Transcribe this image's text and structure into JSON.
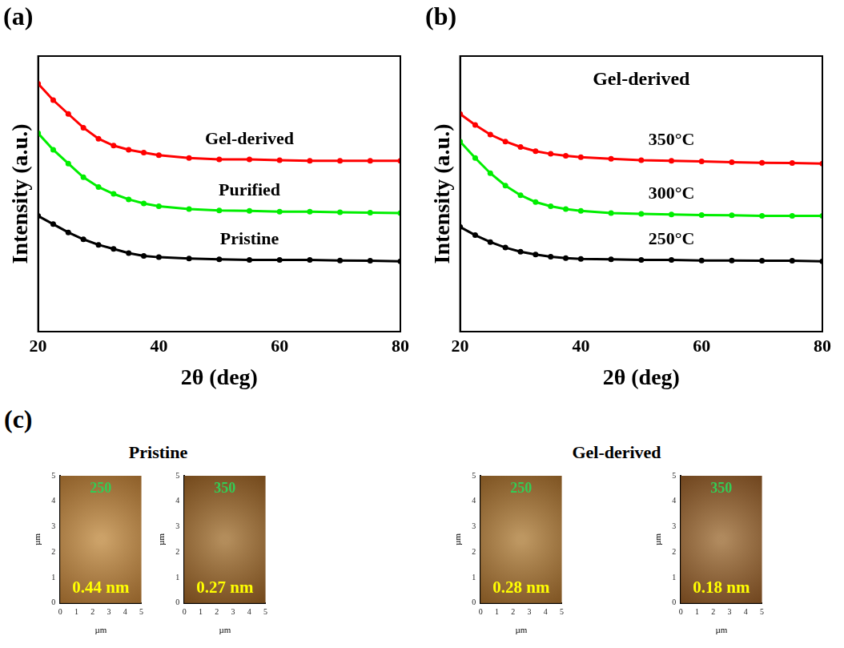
{
  "chart_data": [
    {
      "type": "line",
      "panel": "(a)",
      "x_label": "2θ (deg)",
      "y_label": "Intensity (a.u.)",
      "xlim": [
        20,
        80
      ],
      "xticks": [
        20,
        40,
        60,
        80
      ],
      "ylim": [
        0,
        10
      ],
      "yticks": [],
      "tick_labels": "x",
      "grid": false,
      "marker": "circle",
      "line_style": "solid",
      "x": [
        20,
        22.5,
        25,
        27.5,
        30,
        32.5,
        35,
        37.5,
        40,
        45,
        50,
        55,
        60,
        65,
        70,
        75,
        80
      ],
      "series": [
        {
          "name": "Gel-derived",
          "color": "#ff0000",
          "values": [
            9.0,
            8.4,
            7.9,
            7.4,
            7.0,
            6.75,
            6.6,
            6.5,
            6.4,
            6.3,
            6.25,
            6.25,
            6.22,
            6.2,
            6.2,
            6.2,
            6.2
          ]
        },
        {
          "name": "Purified",
          "color": "#00ee00",
          "values": [
            7.2,
            6.6,
            6.1,
            5.6,
            5.25,
            5.0,
            4.8,
            4.65,
            4.55,
            4.45,
            4.4,
            4.38,
            4.35,
            4.35,
            4.33,
            4.32,
            4.3
          ]
        },
        {
          "name": "Pristine",
          "color": "#000000",
          "values": [
            4.2,
            3.9,
            3.6,
            3.35,
            3.15,
            3.0,
            2.85,
            2.75,
            2.7,
            2.65,
            2.62,
            2.6,
            2.6,
            2.6,
            2.58,
            2.57,
            2.55
          ]
        }
      ]
    },
    {
      "type": "line",
      "panel": "(b)",
      "title": "Gel-derived",
      "x_label": "2θ (deg)",
      "y_label": "Intensity (a.u.)",
      "xlim": [
        20,
        80
      ],
      "xticks": [
        20,
        40,
        60,
        80
      ],
      "ylim": [
        0,
        10
      ],
      "yticks": [],
      "tick_labels": "x",
      "grid": false,
      "marker": "circle",
      "line_style": "solid",
      "x": [
        20,
        22.5,
        25,
        27.5,
        30,
        32.5,
        35,
        37.5,
        40,
        45,
        50,
        55,
        60,
        65,
        70,
        75,
        80
      ],
      "series": [
        {
          "name": "350°C",
          "color": "#ff0000",
          "values": [
            7.9,
            7.5,
            7.15,
            6.9,
            6.7,
            6.55,
            6.45,
            6.38,
            6.33,
            6.27,
            6.22,
            6.2,
            6.18,
            6.15,
            6.13,
            6.12,
            6.1
          ]
        },
        {
          "name": "300°C",
          "color": "#00ee00",
          "values": [
            6.9,
            6.3,
            5.75,
            5.3,
            4.95,
            4.7,
            4.55,
            4.45,
            4.38,
            4.3,
            4.27,
            4.25,
            4.23,
            4.22,
            4.2,
            4.2,
            4.2
          ]
        },
        {
          "name": "250°C",
          "color": "#000000",
          "values": [
            3.8,
            3.5,
            3.25,
            3.05,
            2.9,
            2.8,
            2.72,
            2.67,
            2.64,
            2.62,
            2.6,
            2.6,
            2.58,
            2.58,
            2.57,
            2.57,
            2.55
          ]
        }
      ]
    },
    {
      "type": "image",
      "panel": "(c)",
      "group": "Pristine",
      "title": "250",
      "annotation": "0.44 nm",
      "x_label": "µm",
      "y_label": "µm",
      "xlim": [
        0,
        5
      ],
      "xticks": [
        0,
        1,
        2,
        3,
        4,
        5
      ],
      "ylim": [
        0,
        5
      ],
      "yticks": [
        0,
        1,
        2,
        3,
        4,
        5
      ],
      "grid": false,
      "color": "#b07a3a"
    },
    {
      "type": "image",
      "group": "Pristine",
      "title": "350",
      "annotation": "0.27 nm",
      "x_label": "µm",
      "y_label": "µm",
      "xlim": [
        0,
        5
      ],
      "xticks": [
        0,
        1,
        2,
        3,
        4,
        5
      ],
      "ylim": [
        0,
        5
      ],
      "yticks": [
        0,
        1,
        2,
        3,
        4,
        5
      ],
      "grid": false,
      "color": "#8a5a26"
    },
    {
      "type": "image",
      "group": "Gel-derived",
      "title": "250",
      "annotation": "0.28 nm",
      "x_label": "µm",
      "y_label": "µm",
      "xlim": [
        0,
        5
      ],
      "xticks": [
        0,
        1,
        2,
        3,
        4,
        5
      ],
      "ylim": [
        0,
        5
      ],
      "yticks": [
        0,
        1,
        2,
        3,
        4,
        5
      ],
      "grid": false,
      "color": "#9a6a30"
    },
    {
      "type": "image",
      "group": "Gel-derived",
      "title": "350",
      "annotation": "0.18 nm",
      "x_label": "µm",
      "y_label": "µm",
      "xlim": [
        0,
        5
      ],
      "xticks": [
        0,
        1,
        2,
        3,
        4,
        5
      ],
      "ylim": [
        0,
        5
      ],
      "yticks": [
        0,
        1,
        2,
        3,
        4,
        5
      ],
      "grid": false,
      "color": "#85552a"
    }
  ]
}
